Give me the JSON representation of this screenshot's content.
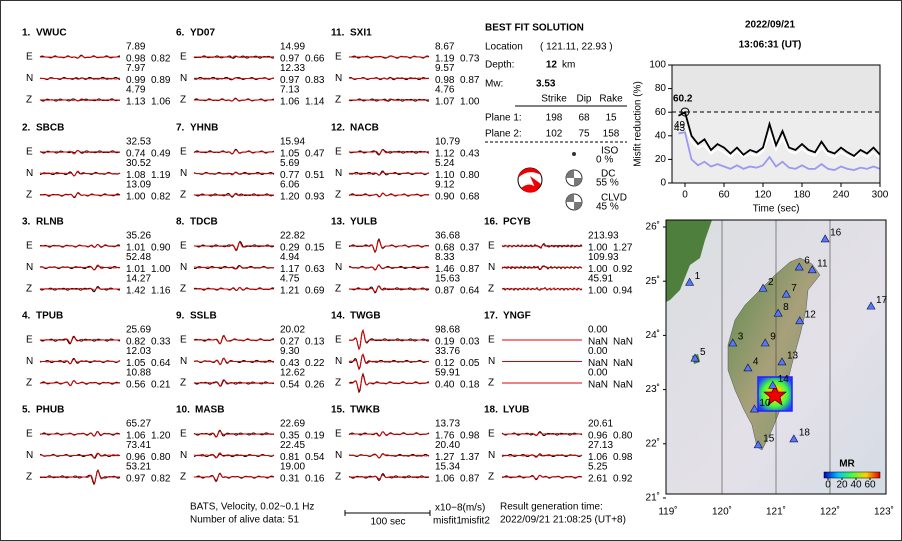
{
  "header": {
    "date": "2022/09/21",
    "time": "13:06:31  (UT)"
  },
  "stations": [
    {
      "label": "1.",
      "name": "VWUC",
      "traces": [
        {
          "component": "E",
          "amp": "7.89",
          "misfit1": "0.98",
          "misfit2": "0.82"
        },
        {
          "component": "N",
          "amp": "7.97",
          "misfit1": "0.99",
          "misfit2": "0.89"
        },
        {
          "component": "Z",
          "amp": "4.79",
          "misfit1": "1.13",
          "misfit2": "1.06"
        }
      ]
    },
    {
      "label": "2.",
      "name": "SBCB",
      "traces": [
        {
          "component": "E",
          "amp": "32.53",
          "misfit1": "0.74",
          "misfit2": "0.49"
        },
        {
          "component": "N",
          "amp": "30.52",
          "misfit1": "1.08",
          "misfit2": "1.19"
        },
        {
          "component": "Z",
          "amp": "13.09",
          "misfit1": "1.00",
          "misfit2": "0.82"
        }
      ]
    },
    {
      "label": "3.",
      "name": "RLNB",
      "traces": [
        {
          "component": "E",
          "amp": "35.26",
          "misfit1": "1.01",
          "misfit2": "0.90"
        },
        {
          "component": "N",
          "amp": "52.48",
          "misfit1": "1.01",
          "misfit2": "1.00"
        },
        {
          "component": "Z",
          "amp": "14.27",
          "misfit1": "1.42",
          "misfit2": "1.16"
        }
      ]
    },
    {
      "label": "4.",
      "name": "TPUB",
      "traces": [
        {
          "component": "E",
          "amp": "25.69",
          "misfit1": "0.82",
          "misfit2": "0.33"
        },
        {
          "component": "N",
          "amp": "12.03",
          "misfit1": "1.05",
          "misfit2": "0.64"
        },
        {
          "component": "Z",
          "amp": "10.88",
          "misfit1": "0.56",
          "misfit2": "0.21"
        }
      ]
    },
    {
      "label": "5.",
      "name": "PHUB",
      "traces": [
        {
          "component": "E",
          "amp": "65.27",
          "misfit1": "1.06",
          "misfit2": "1.20"
        },
        {
          "component": "N",
          "amp": "73.41",
          "misfit1": "0.96",
          "misfit2": "0.80"
        },
        {
          "component": "Z",
          "amp": "53.21",
          "misfit1": "0.97",
          "misfit2": "0.82"
        }
      ]
    },
    {
      "label": "6.",
      "name": "YD07",
      "traces": [
        {
          "component": "E",
          "amp": "14.99",
          "misfit1": "0.97",
          "misfit2": "0.66"
        },
        {
          "component": "N",
          "amp": "12.33",
          "misfit1": "0.97",
          "misfit2": "0.83"
        },
        {
          "component": "Z",
          "amp": "7.13",
          "misfit1": "1.06",
          "misfit2": "1.14"
        }
      ]
    },
    {
      "label": "7.",
      "name": "YHNB",
      "traces": [
        {
          "component": "E",
          "amp": "15.94",
          "misfit1": "1.05",
          "misfit2": "0.47"
        },
        {
          "component": "N",
          "amp": "5.69",
          "misfit1": "0.77",
          "misfit2": "0.51"
        },
        {
          "component": "Z",
          "amp": "6.06",
          "misfit1": "1.20",
          "misfit2": "0.93"
        }
      ]
    },
    {
      "label": "8.",
      "name": "TDCB",
      "traces": [
        {
          "component": "E",
          "amp": "22.82",
          "misfit1": "0.29",
          "misfit2": "0.15"
        },
        {
          "component": "N",
          "amp": "4.94",
          "misfit1": "1.17",
          "misfit2": "0.63"
        },
        {
          "component": "Z",
          "amp": "4.75",
          "misfit1": "1.21",
          "misfit2": "0.69"
        }
      ]
    },
    {
      "label": "9.",
      "name": "SSLB",
      "traces": [
        {
          "component": "E",
          "amp": "20.02",
          "misfit1": "0.27",
          "misfit2": "0.13"
        },
        {
          "component": "N",
          "amp": "9.30",
          "misfit1": "0.43",
          "misfit2": "0.22"
        },
        {
          "component": "Z",
          "amp": "12.62",
          "misfit1": "0.54",
          "misfit2": "0.26"
        }
      ]
    },
    {
      "label": "10.",
      "name": "MASB",
      "traces": [
        {
          "component": "E",
          "amp": "22.69",
          "misfit1": "0.35",
          "misfit2": "0.19"
        },
        {
          "component": "N",
          "amp": "22.45",
          "misfit1": "0.81",
          "misfit2": "0.54"
        },
        {
          "component": "Z",
          "amp": "19.00",
          "misfit1": "0.31",
          "misfit2": "0.16"
        }
      ]
    },
    {
      "label": "11.",
      "name": "SXI1",
      "traces": [
        {
          "component": "E",
          "amp": "8.67",
          "misfit1": "1.19",
          "misfit2": "0.73"
        },
        {
          "component": "N",
          "amp": "9.57",
          "misfit1": "0.98",
          "misfit2": "0.87"
        },
        {
          "component": "Z",
          "amp": "4.76",
          "misfit1": "1.07",
          "misfit2": "1.00"
        }
      ]
    },
    {
      "label": "12.",
      "name": "NACB",
      "traces": [
        {
          "component": "E",
          "amp": "10.79",
          "misfit1": "1.12",
          "misfit2": "0.43"
        },
        {
          "component": "N",
          "amp": "5.24",
          "misfit1": "1.10",
          "misfit2": "0.80"
        },
        {
          "component": "Z",
          "amp": "9.12",
          "misfit1": "0.90",
          "misfit2": "0.68"
        }
      ]
    },
    {
      "label": "13.",
      "name": "YULB",
      "traces": [
        {
          "component": "E",
          "amp": "36.68",
          "misfit1": "0.68",
          "misfit2": "0.37"
        },
        {
          "component": "N",
          "amp": "8.33",
          "misfit1": "1.46",
          "misfit2": "0.87"
        },
        {
          "component": "Z",
          "amp": "15.63",
          "misfit1": "0.87",
          "misfit2": "0.64"
        }
      ]
    },
    {
      "label": "14.",
      "name": "TWGB",
      "traces": [
        {
          "component": "E",
          "amp": "98.68",
          "misfit1": "0.19",
          "misfit2": "0.03"
        },
        {
          "component": "N",
          "amp": "33.76",
          "misfit1": "0.12",
          "misfit2": "0.05"
        },
        {
          "component": "Z",
          "amp": "59.91",
          "misfit1": "0.40",
          "misfit2": "0.18"
        }
      ]
    },
    {
      "label": "15.",
      "name": "TWKB",
      "traces": [
        {
          "component": "E",
          "amp": "13.73",
          "misfit1": "1.76",
          "misfit2": "0.98"
        },
        {
          "component": "N",
          "amp": "20.40",
          "misfit1": "1.27",
          "misfit2": "1.37"
        },
        {
          "component": "Z",
          "amp": "15.34",
          "misfit1": "1.06",
          "misfit2": "0.87"
        }
      ]
    },
    {
      "label": "16.",
      "name": "PCYB",
      "traces": [
        {
          "component": "E",
          "amp": "213.93",
          "misfit1": "1.00",
          "misfit2": "1.27"
        },
        {
          "component": "N",
          "amp": "109.93",
          "misfit1": "1.00",
          "misfit2": "0.92"
        },
        {
          "component": "Z",
          "amp": "45.91",
          "misfit1": "1.00",
          "misfit2": "0.94"
        }
      ]
    },
    {
      "label": "17.",
      "name": "YNGF",
      "traces": [
        {
          "component": "E",
          "amp": "0.00",
          "misfit1": "NaN",
          "misfit2": "NaN"
        },
        {
          "component": "N",
          "amp": "0.00",
          "misfit1": "NaN",
          "misfit2": "NaN"
        },
        {
          "component": "Z",
          "amp": "0.00",
          "misfit1": "NaN",
          "misfit2": "NaN"
        }
      ]
    },
    {
      "label": "18.",
      "name": "LYUB",
      "traces": [
        {
          "component": "E",
          "amp": "20.61",
          "misfit1": "0.96",
          "misfit2": "0.80"
        },
        {
          "component": "N",
          "amp": "27.13",
          "misfit1": "1.06",
          "misfit2": "0.98"
        },
        {
          "component": "Z",
          "amp": "5.25",
          "misfit1": "2.61",
          "misfit2": "0.92"
        }
      ]
    }
  ],
  "solution": {
    "title": "BEST FIT SOLUTION",
    "location_label": "Location",
    "location": "( 121.11,  22.93 )",
    "depth_label": "Depth:",
    "depth": "12",
    "depth_unit": "km",
    "mw_label": "Mw:",
    "mw": "3.53",
    "headers": [
      "Strike",
      "Dip",
      "Rake"
    ],
    "planes": [
      {
        "label": "Plane 1:",
        "values": [
          "198",
          "68",
          "15"
        ]
      },
      {
        "label": "Plane 2:",
        "values": [
          "102",
          "75",
          "158"
        ]
      }
    ],
    "components": [
      {
        "name": "ISO",
        "percent": "0 %"
      },
      {
        "name": "DC",
        "percent": "55 %"
      },
      {
        "name": "CLVD",
        "percent": "45 %"
      }
    ]
  },
  "misfit_plot": {
    "ylabel": "Misfit reduction (%)",
    "xlabel": "Time (sec)",
    "xlim": [
      -20,
      300
    ],
    "ylim": [
      0,
      100
    ],
    "xticks": [
      0,
      60,
      120,
      180,
      240,
      300
    ],
    "yticks": [
      0,
      20,
      40,
      60,
      80,
      100
    ],
    "best": 60.2,
    "gray_at_best": 49,
    "blue_at_best": 43,
    "x": [
      -10,
      0,
      10,
      20,
      30,
      40,
      50,
      60,
      70,
      80,
      90,
      100,
      110,
      120,
      130,
      140,
      150,
      160,
      170,
      180,
      190,
      200,
      210,
      220,
      230,
      240,
      250,
      260,
      270,
      280,
      290,
      300
    ],
    "series": [
      {
        "color": "#ffffff",
        "values": [
          48,
          49,
          35,
          30,
          32,
          25,
          29,
          26,
          22,
          27,
          22,
          25,
          23,
          27,
          42,
          28,
          38,
          27,
          25,
          29,
          25,
          23,
          30,
          24,
          22,
          26,
          23,
          21,
          25,
          22,
          26,
          21
        ]
      },
      {
        "color": "#9999ee",
        "values": [
          42,
          43,
          20,
          15,
          18,
          14,
          16,
          14,
          12,
          15,
          12,
          14,
          13,
          15,
          22,
          14,
          18,
          13,
          12,
          15,
          12,
          12,
          16,
          12,
          11,
          14,
          12,
          11,
          13,
          12,
          14,
          12
        ]
      },
      {
        "color": "#000000",
        "values": [
          57,
          60,
          40,
          33,
          37,
          28,
          33,
          30,
          25,
          30,
          24,
          28,
          26,
          30,
          50,
          32,
          44,
          30,
          28,
          33,
          28,
          26,
          35,
          27,
          25,
          30,
          26,
          23,
          28,
          25,
          30,
          24
        ]
      }
    ]
  },
  "map": {
    "lon_ticks": [
      {
        "value": 119,
        "label": "119˚"
      },
      {
        "value": 120,
        "label": "120˚"
      },
      {
        "value": 121,
        "label": "121˚"
      },
      {
        "value": 122,
        "label": "122˚"
      },
      {
        "value": 123,
        "label": "123˚"
      }
    ],
    "lat_ticks": [
      {
        "value": 21,
        "label": "21˚"
      },
      {
        "value": 22,
        "label": "22˚"
      },
      {
        "value": 23,
        "label": "23˚"
      },
      {
        "value": 24,
        "label": "24˚"
      },
      {
        "value": 25,
        "label": "25˚"
      },
      {
        "value": 26,
        "label": "26˚"
      }
    ],
    "stations": [
      {
        "label": "1",
        "lon": 119.4,
        "lat": 24.98
      },
      {
        "label": "2",
        "lon": 120.76,
        "lat": 24.87
      },
      {
        "label": "3",
        "lon": 120.2,
        "lat": 23.86
      },
      {
        "label": "4",
        "lon": 120.48,
        "lat": 23.4
      },
      {
        "label": "5",
        "lon": 119.5,
        "lat": 23.58
      },
      {
        "label": "6",
        "lon": 121.43,
        "lat": 25.26
      },
      {
        "label": "7",
        "lon": 121.19,
        "lat": 24.76
      },
      {
        "label": "8",
        "lon": 121.04,
        "lat": 24.41
      },
      {
        "label": "9",
        "lon": 120.8,
        "lat": 23.86
      },
      {
        "label": "10",
        "lon": 120.6,
        "lat": 22.64
      },
      {
        "label": "11",
        "lon": 121.67,
        "lat": 25.21
      },
      {
        "label": "12",
        "lon": 121.44,
        "lat": 24.27
      },
      {
        "label": "13",
        "lon": 121.11,
        "lat": 23.51
      },
      {
        "label": "14",
        "lon": 120.94,
        "lat": 23.08
      },
      {
        "label": "15",
        "lon": 120.67,
        "lat": 21.98
      },
      {
        "label": "16",
        "lon": 121.91,
        "lat": 25.78
      },
      {
        "label": "17",
        "lon": 122.76,
        "lat": 24.54
      },
      {
        "label": "18",
        "lon": 121.33,
        "lat": 22.09
      }
    ],
    "colorbar_title": "MR",
    "colorbar_ticks": [
      0,
      20,
      40,
      60
    ]
  },
  "footer": {
    "network": "BATS, Velocity, 0.02~0.1 Hz",
    "alive": "Number of alive data: 51",
    "scale": "100 sec",
    "units": "x10−8(m/s)",
    "misfit1": "misfit1",
    "misfit2": "misfit2",
    "result_label": "Result generation time:",
    "result_time": "2022/09/21 21:08:25 (UT+8)"
  }
}
